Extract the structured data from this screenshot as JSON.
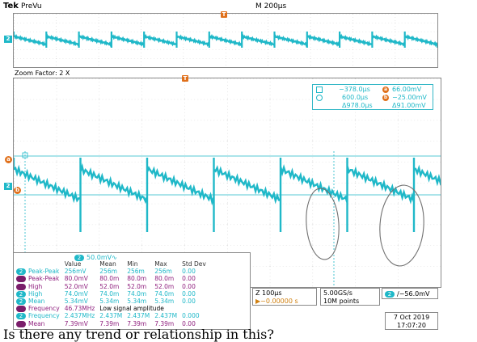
{
  "header": {
    "brand": "Tek",
    "mode": "PreVu",
    "timebase": "M 200µs"
  },
  "zoom": {
    "label": "Zoom Factor: 2 X"
  },
  "channel_markers": {
    "ch2": "2",
    "refb": "b",
    "refa": "a"
  },
  "trigger_marker": "T",
  "cursors": {
    "t1": "−378.0µs",
    "t2": "600.0µs",
    "dt": "Δ978.0µs",
    "a_label": "a",
    "a_value": "66.00mV",
    "b_label": "b",
    "b_value": "−25.00mV",
    "dv": "Δ91.00mV"
  },
  "measurements": {
    "scale_badge": "2",
    "scale": "50.0mV∿",
    "headers": [
      "Value",
      "Mean",
      "Min",
      "Max",
      "Std Dev"
    ],
    "rows": [
      {
        "src": "2",
        "color": "cyan",
        "name": "Peak-Peak",
        "value": "256mV",
        "mean": "256m",
        "min": "256m",
        "max": "256m",
        "std": "0.00"
      },
      {
        "src": "",
        "color": "purple",
        "name": "Peak-Peak",
        "value": "80.0mV",
        "mean": "80.0m",
        "min": "80.0m",
        "max": "80.0m",
        "std": "0.00"
      },
      {
        "src": "",
        "color": "purple",
        "name": "High",
        "value": "52.0mV",
        "mean": "52.0m",
        "min": "52.0m",
        "max": "52.0m",
        "std": "0.00"
      },
      {
        "src": "2",
        "color": "cyan",
        "name": "High",
        "value": "74.0mV",
        "mean": "74.0m",
        "min": "74.0m",
        "max": "74.0m",
        "std": "0.00"
      },
      {
        "src": "2",
        "color": "cyan",
        "name": "Mean",
        "value": "5.34mV",
        "mean": "5.34m",
        "min": "5.34m",
        "max": "5.34m",
        "std": "0.00"
      },
      {
        "src": "",
        "color": "purple",
        "name": "Frequency",
        "value": "46.73MHz",
        "note": "Low signal amplitude"
      },
      {
        "src": "2",
        "color": "cyan",
        "name": "Frequency",
        "value": "2.437MHz",
        "mean": "2.437M",
        "min": "2.437M",
        "max": "2.437M",
        "std": "0.000"
      },
      {
        "src": "",
        "color": "purple",
        "name": "Mean",
        "value": "7.39mV",
        "mean": "7.39m",
        "min": "7.39m",
        "max": "7.39m",
        "std": "0.00"
      }
    ]
  },
  "zoom_info": {
    "line1": "Z 100µs",
    "line2": "▶−0.00000 s"
  },
  "sample_info": {
    "line1": "5.00GS/s",
    "line2": "10M points"
  },
  "trigger_info": {
    "badge": "2",
    "text": "∕−56.0mV"
  },
  "date_info": {
    "date": "7 Oct  2019",
    "time": "17:07:20"
  },
  "caption": "Is there any trend or relationship in this?",
  "colors": {
    "trace": "#1fb8c8",
    "ref": "#7a1d6a",
    "marker": "#e0701b",
    "annotation": "#707070"
  }
}
